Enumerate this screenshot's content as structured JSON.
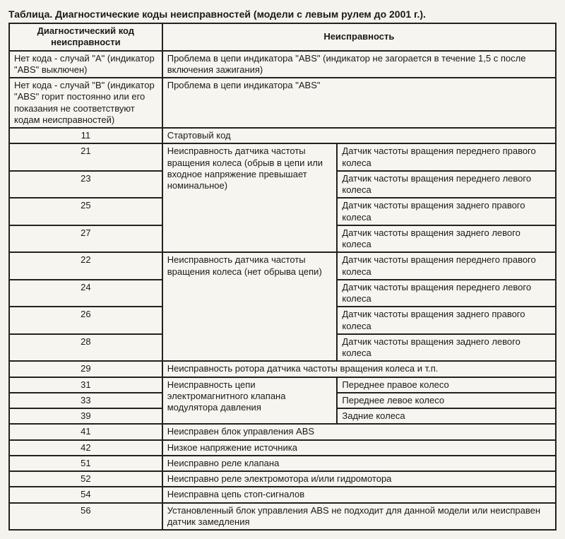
{
  "title": "Таблица. Диагностические коды неисправностей (модели с левым рулем до 2001 г.).",
  "header": {
    "code": "Диагностический код неисправности",
    "fault": "Неисправность"
  },
  "rows": {
    "caseA_code": "Нет кода - случай \"А\" (индикатор \"ABS\" выключен)",
    "caseA_fault": "Проблема в цепи индикатора \"ABS\" (индикатор не загорается в течение 1,5 с после включения зажигания)",
    "caseB_code": "Нет кода - случай \"В\" (индикатор \"ABS\" горит постоянно или его показания не соответствуют кодам неисправностей)",
    "caseB_fault": "Проблема в цепи индикатора \"ABS\"",
    "c11": "11",
    "c11_fault": "Стартовый код",
    "group1_desc": "Неисправность датчика частоты вращения колеса (обрыв в цепи или входное напряжение превышает номинальное)",
    "c21": "21",
    "c21_d": "Датчик частоты вращения переднего правого колеса",
    "c23": "23",
    "c23_d": "Датчик частоты вращения переднего левого колеса",
    "c25": "25",
    "c25_d": "Датчик частоты вращения заднего правого колеса",
    "c27": "27",
    "c27_d": "Датчик частоты вращения заднего левого колеса",
    "group2_desc": "Неисправность датчика частоты вращения колеса (нет обрыва цепи)",
    "c22": "22",
    "c22_d": "Датчик частоты вращения переднего правого колеса",
    "c24": "24",
    "c24_d": "Датчик частоты вращения переднего левого колеса",
    "c26": "26",
    "c26_d": "Датчик частоты вращения заднего правого колеса",
    "c28": "28",
    "c28_d": "Датчик частоты вращения заднего левого колеса",
    "c29": "29",
    "c29_fault": "Неисправность ротора датчика частоты вращения колеса и т.п.",
    "group3_desc": "Неисправность цепи электромагнитного клапана модулятора давления",
    "c31": "31",
    "c31_d": "Переднее правое колесо",
    "c33": "33",
    "c33_d": "Переднее левое колесо",
    "c39": "39",
    "c39_d": "Задние колеса",
    "c41": "41",
    "c41_fault": "Неисправен блок управления ABS",
    "c42": "42",
    "c42_fault": "Низкое напряжение источника",
    "c51": "51",
    "c51_fault": "Неисправно реле клапана",
    "c52": "52",
    "c52_fault": "Неисправно реле электромотора и/или гидромотора",
    "c54": "54",
    "c54_fault": "Неисправна цепь стоп-сигналов",
    "c56": "56",
    "c56_fault": "Установленный блок управления ABS не подходит для данной модели или неисправен датчик замедления"
  }
}
